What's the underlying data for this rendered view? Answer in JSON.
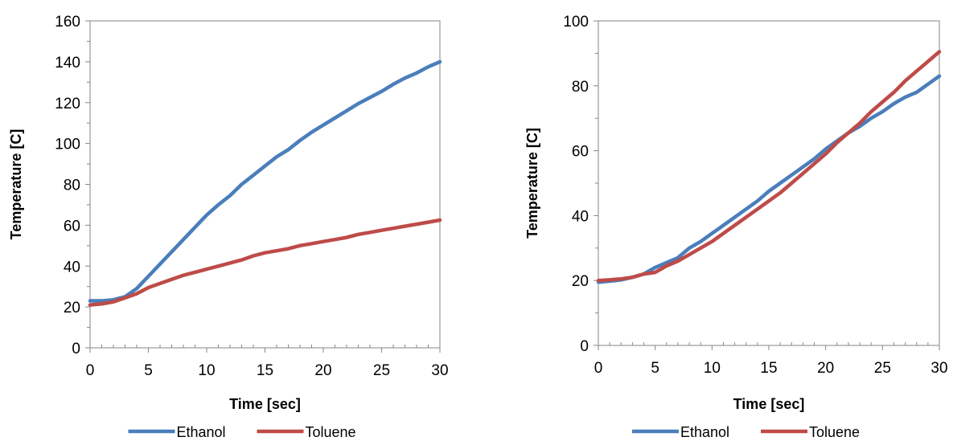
{
  "chart_data": [
    {
      "type": "line",
      "title": "",
      "xlabel": "Time [sec]",
      "ylabel": "Temperature [C]",
      "xlim": [
        0,
        30
      ],
      "ylim": [
        0,
        160
      ],
      "xticks": [
        0,
        5,
        10,
        15,
        20,
        25,
        30
      ],
      "yticks": [
        0,
        20,
        40,
        60,
        80,
        100,
        120,
        140,
        160
      ],
      "grid": false,
      "legend_position": "bottom",
      "series": [
        {
          "name": "Ethanol",
          "color": "#4a7ebb",
          "x": [
            0,
            1,
            2,
            3,
            4,
            5,
            6,
            7,
            8,
            9,
            10,
            11,
            12,
            13,
            14,
            15,
            16,
            17,
            18,
            19,
            20,
            21,
            22,
            23,
            24,
            25,
            26,
            27,
            28,
            29,
            30
          ],
          "y": [
            23,
            23,
            23.5,
            25,
            29,
            35,
            41,
            47,
            53,
            59,
            65,
            70,
            74.5,
            80,
            84.5,
            89,
            93.5,
            97,
            101.5,
            105.5,
            109,
            112.5,
            116,
            119.5,
            122.5,
            125.5,
            129,
            132,
            134.5,
            137.5,
            140
          ]
        },
        {
          "name": "Toluene",
          "color": "#be4b48",
          "x": [
            0,
            1,
            2,
            3,
            4,
            5,
            6,
            7,
            8,
            9,
            10,
            11,
            12,
            13,
            14,
            15,
            16,
            17,
            18,
            19,
            20,
            21,
            22,
            23,
            24,
            25,
            26,
            27,
            28,
            29,
            30
          ],
          "y": [
            21,
            21.5,
            22.5,
            24.5,
            26.5,
            29.5,
            31.5,
            33.5,
            35.5,
            37,
            38.5,
            40,
            41.5,
            43,
            45,
            46.5,
            47.5,
            48.5,
            50,
            51,
            52,
            53,
            54,
            55.5,
            56.5,
            57.5,
            58.5,
            59.5,
            60.5,
            61.5,
            62.5
          ]
        }
      ]
    },
    {
      "type": "line",
      "title": "",
      "xlabel": "Time [sec]",
      "ylabel": "Temperature [C]",
      "xlim": [
        0,
        30
      ],
      "ylim": [
        0,
        100
      ],
      "xticks": [
        0,
        5,
        10,
        15,
        20,
        25,
        30
      ],
      "yticks": [
        0,
        20,
        40,
        60,
        80,
        100
      ],
      "grid": false,
      "legend_position": "bottom",
      "series": [
        {
          "name": "Ethanol",
          "color": "#4a7ebb",
          "x": [
            0,
            1,
            2,
            3,
            4,
            5,
            6,
            7,
            8,
            9,
            10,
            11,
            12,
            13,
            14,
            15,
            16,
            17,
            18,
            19,
            20,
            21,
            22,
            23,
            24,
            25,
            26,
            27,
            28,
            29,
            30
          ],
          "y": [
            19.5,
            19.8,
            20.2,
            21,
            22,
            24,
            25.5,
            27,
            30,
            32,
            34.5,
            37,
            39.5,
            42,
            44.5,
            47.5,
            50,
            52.5,
            55,
            57.5,
            60.5,
            63,
            65.5,
            67.5,
            70,
            72,
            74.5,
            76.5,
            78,
            80.5,
            83
          ]
        },
        {
          "name": "Toluene",
          "color": "#be4b48",
          "x": [
            0,
            1,
            2,
            3,
            4,
            5,
            6,
            7,
            8,
            9,
            10,
            11,
            12,
            13,
            14,
            15,
            16,
            17,
            18,
            19,
            20,
            21,
            22,
            23,
            24,
            25,
            26,
            27,
            28,
            29,
            30
          ],
          "y": [
            20,
            20.2,
            20.5,
            21,
            22,
            22.5,
            24.5,
            26,
            28,
            30,
            32,
            34.5,
            37,
            39.5,
            42,
            44.5,
            47,
            50,
            53,
            56,
            59,
            62.5,
            65.5,
            68.5,
            72,
            75,
            78,
            81.5,
            84.5,
            87.5,
            90.5
          ]
        }
      ]
    }
  ]
}
